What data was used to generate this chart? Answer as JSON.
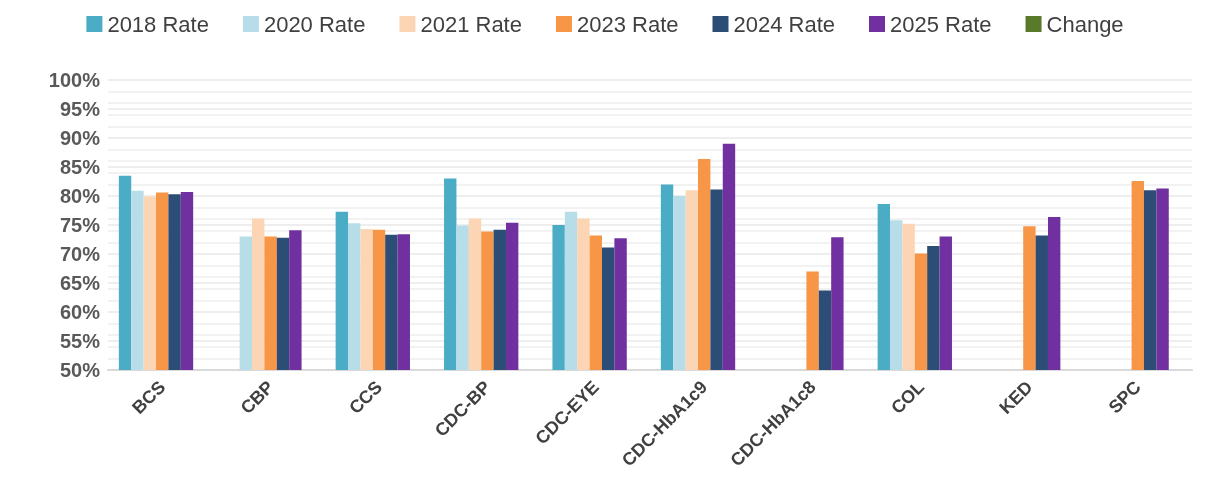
{
  "chart_data": {
    "type": "bar",
    "categories": [
      "BCS",
      "CBP",
      "CCS",
      "CDC-BP",
      "CDC-EYE",
      "CDC-HbA1c9",
      "CDC-HbA1c8",
      "COL",
      "KED",
      "SPC"
    ],
    "series": [
      {
        "name": "2018 Rate",
        "color": "#4bacc6",
        "values": [
          83.5,
          null,
          77.3,
          83.0,
          75.0,
          82.0,
          null,
          78.6,
          null,
          null
        ]
      },
      {
        "name": "2020 Rate",
        "color": "#b7dde8",
        "values": [
          80.9,
          73.0,
          75.3,
          74.9,
          77.3,
          80.0,
          null,
          75.8,
          null,
          null
        ]
      },
      {
        "name": "2021 Rate",
        "color": "#fcd5b4",
        "values": [
          79.9,
          76.1,
          74.3,
          76.1,
          76.1,
          81.0,
          null,
          75.2,
          null,
          null
        ]
      },
      {
        "name": "2023 Rate",
        "color": "#f79646",
        "values": [
          80.6,
          73.0,
          74.2,
          73.9,
          73.2,
          86.4,
          67.0,
          70.1,
          74.8,
          82.6
        ]
      },
      {
        "name": "2024 Rate",
        "color": "#2c4d75",
        "values": [
          80.3,
          72.8,
          73.3,
          74.2,
          71.1,
          81.1,
          63.7,
          71.4,
          73.2,
          81.0
        ]
      },
      {
        "name": "2025 Rate",
        "color": "#7030a0",
        "values": [
          80.7,
          74.1,
          73.4,
          75.4,
          72.7,
          89.0,
          72.9,
          73.0,
          76.4,
          81.3
        ]
      },
      {
        "name": "Change",
        "color": "#5a7a2b",
        "values": [
          null,
          null,
          null,
          null,
          null,
          null,
          null,
          null,
          null,
          null
        ]
      }
    ],
    "ylim": [
      50,
      100
    ],
    "yticks": [
      {
        "value": 50,
        "label": "50%"
      },
      {
        "value": 55,
        "label": "55%"
      },
      {
        "value": 60,
        "label": "60%"
      },
      {
        "value": 65,
        "label": "65%"
      },
      {
        "value": 70,
        "label": "70%"
      },
      {
        "value": 75,
        "label": "75%"
      },
      {
        "value": 80,
        "label": "80%"
      },
      {
        "value": 85,
        "label": "85%"
      },
      {
        "value": 90,
        "label": "90%"
      },
      {
        "value": 95,
        "label": "95%"
      },
      {
        "value": 100,
        "label": "100%"
      }
    ],
    "grid": "y",
    "legend": "top"
  }
}
